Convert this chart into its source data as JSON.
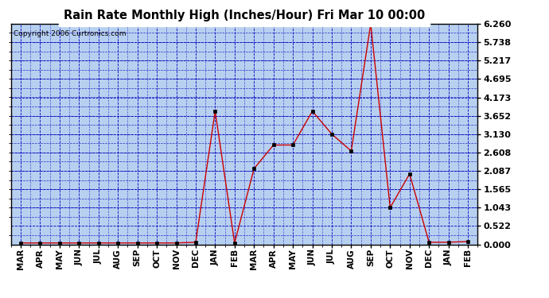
{
  "title": "Rain Rate Monthly High (Inches/Hour) Fri Mar 10 00:00",
  "copyright": "Copyright 2006 Curtronics.com",
  "x_labels": [
    "MAR",
    "APR",
    "MAY",
    "JUN",
    "JUL",
    "AUG",
    "SEP",
    "OCT",
    "NOV",
    "DEC",
    "JAN",
    "FEB",
    "MAR",
    "APR",
    "MAY",
    "JUN",
    "JUL",
    "AUG",
    "SEP",
    "OCT",
    "NOV",
    "DEC",
    "JAN",
    "FEB"
  ],
  "y_values": [
    0.04,
    0.04,
    0.04,
    0.04,
    0.04,
    0.04,
    0.04,
    0.04,
    0.04,
    0.06,
    3.78,
    0.04,
    2.15,
    2.82,
    2.82,
    3.78,
    3.13,
    2.65,
    6.26,
    1.043,
    2.0,
    0.06,
    0.06,
    0.08
  ],
  "line_color": "#cc0000",
  "marker_color": "#000000",
  "bg_color": "#b8d0f0",
  "frame_color": "#ffffff",
  "grid_color": "#0000bb",
  "title_color": "#000000",
  "title_bg": "#ffffff",
  "y_ticks": [
    0.0,
    0.522,
    1.043,
    1.565,
    2.087,
    2.608,
    3.13,
    3.652,
    4.173,
    4.695,
    5.217,
    5.738,
    6.26
  ],
  "y_max": 6.26,
  "y_min": 0.0
}
